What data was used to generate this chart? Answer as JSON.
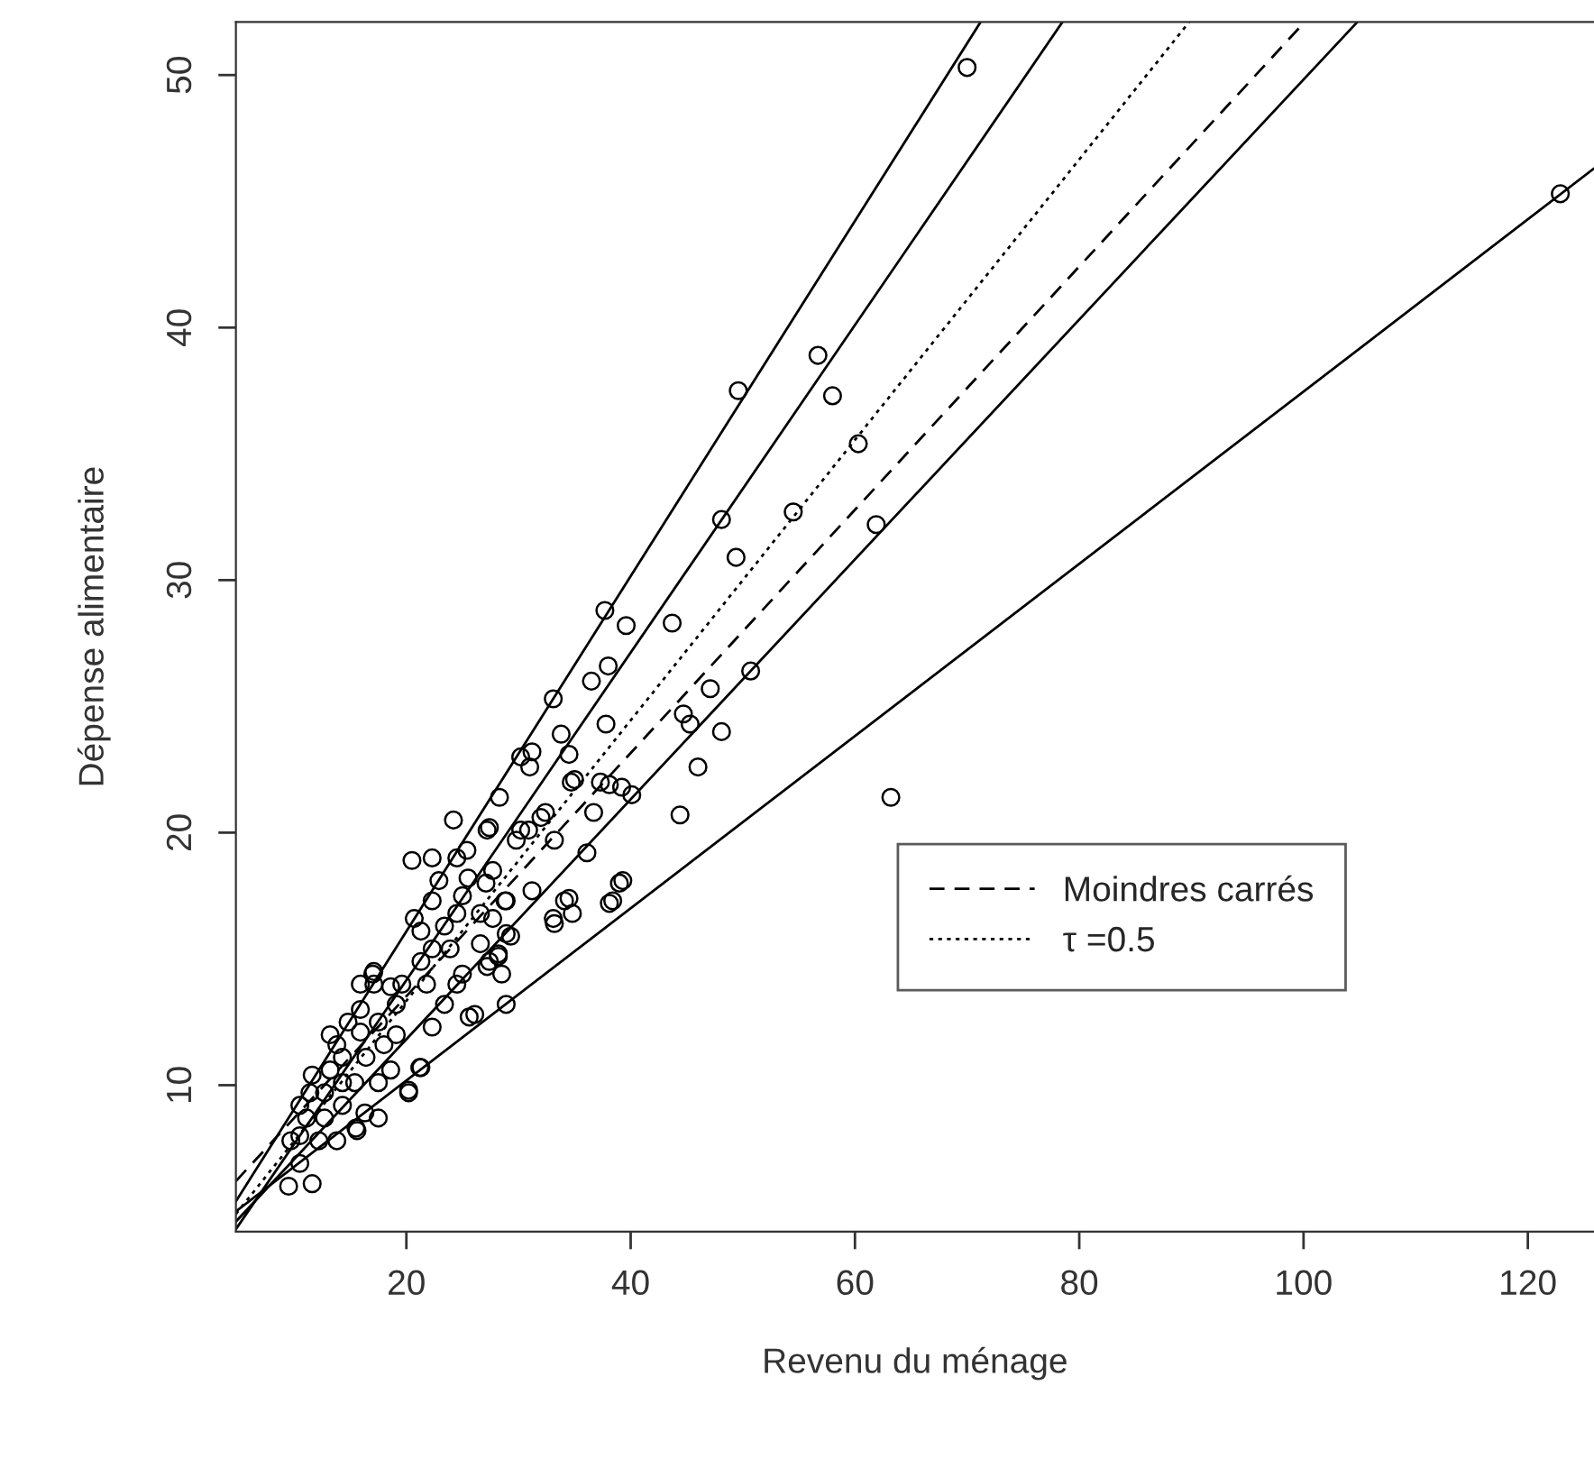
{
  "chart_data": {
    "type": "scatter",
    "xlabel": "Revenu du ménage",
    "ylabel": "Dépense alimentaire",
    "xlim": [
      4.8,
      125.9
    ],
    "ylim": [
      4.2,
      52.1
    ],
    "xticks": [
      20,
      40,
      60,
      80,
      100,
      120
    ],
    "yticks": [
      10,
      20,
      30,
      40,
      50
    ],
    "grid": false,
    "legend": "right",
    "series": [
      {
        "marker": "circle",
        "color": "#000000",
        "x": [
          70.0,
          122.9,
          56.7,
          49.6,
          58.0,
          60.3,
          54.5,
          48.1,
          61.9,
          49.4,
          37.7,
          39.6,
          43.7,
          33.1,
          38.0,
          36.5,
          47.1,
          50.7,
          44.7,
          45.3,
          37.8,
          33.8,
          34.5,
          30.2,
          31.2,
          48.1,
          46.0,
          35.0,
          38.1,
          39.2,
          40.1,
          36.7,
          44.4,
          63.2,
          31.0,
          28.3,
          32.4,
          24.2,
          20.5,
          36.1,
          33.2,
          30.2,
          27.4,
          39.3,
          38.1,
          34.5,
          33.2,
          34.8,
          31.2,
          28.9,
          27.1,
          25.4,
          22.9,
          28.9,
          28.2,
          28.5,
          27.4,
          28.9,
          25.6,
          21.3,
          20.2,
          17.1,
          17.1,
          15.5,
          16.3,
          9.5,
          11.6,
          10.5,
          9.7,
          11.1,
          12.7,
          11.4,
          13.8,
          15.9,
          13.2,
          15.4,
          17.5,
          15.6,
          17.5,
          20.2,
          21.2,
          17.0,
          15.9,
          22.3,
          25.0,
          26.6,
          28.8,
          27.7,
          29.3,
          28.2,
          27.2,
          26.1,
          23.4,
          22.3,
          19.1,
          19.1,
          18.6,
          21.3,
          23.9,
          25.0,
          23.4,
          21.3,
          25.5,
          27.7,
          29.8,
          30.9,
          14.3,
          12.2,
          10.5,
          12.7,
          14.3,
          13.8,
          13.2,
          14.8,
          15.9,
          17.5,
          18.0,
          16.4,
          18.6,
          14.3,
          11.6,
          10.5,
          33.1,
          34.1,
          38.4,
          39.0,
          32.0,
          34.7,
          37.3,
          19.6,
          20.7,
          21.8,
          24.5,
          22.3,
          24.5,
          26.6,
          22.3,
          24.5,
          27.2
        ],
        "values": [
          50.3,
          45.3,
          38.9,
          37.5,
          37.3,
          35.4,
          32.7,
          32.4,
          32.2,
          30.9,
          28.8,
          28.2,
          28.3,
          25.3,
          26.6,
          26.0,
          25.7,
          26.4,
          24.7,
          24.3,
          24.3,
          23.9,
          23.1,
          23.0,
          23.2,
          24.0,
          22.6,
          22.1,
          21.9,
          21.8,
          21.5,
          20.8,
          20.7,
          21.4,
          22.6,
          21.4,
          20.8,
          20.5,
          18.9,
          19.2,
          19.7,
          20.1,
          20.2,
          18.1,
          17.2,
          17.4,
          16.4,
          16.8,
          17.7,
          17.3,
          18.0,
          19.3,
          18.1,
          16.0,
          15.2,
          14.4,
          14.9,
          13.2,
          12.7,
          10.7,
          9.8,
          14.0,
          14.5,
          8.3,
          8.9,
          6.0,
          6.1,
          6.9,
          7.8,
          8.7,
          9.7,
          9.7,
          11.6,
          12.1,
          10.6,
          10.1,
          10.1,
          8.2,
          8.7,
          9.7,
          10.7,
          14.4,
          14.0,
          17.3,
          17.5,
          16.8,
          17.3,
          16.6,
          15.9,
          15.1,
          14.7,
          12.8,
          13.2,
          12.3,
          13.2,
          12.0,
          13.9,
          14.9,
          15.4,
          14.4,
          16.3,
          16.1,
          18.2,
          18.5,
          19.7,
          20.1,
          10.1,
          7.8,
          8.0,
          8.7,
          9.2,
          7.8,
          12.0,
          12.5,
          13.0,
          12.5,
          11.6,
          11.1,
          10.6,
          11.1,
          10.4,
          9.2,
          16.6,
          17.3,
          17.3,
          18.0,
          20.6,
          22.0,
          22.0,
          14.0,
          16.6,
          14.0,
          14.0,
          15.4,
          16.8,
          15.6,
          19.0,
          19.0,
          20.1
        ]
      },
      {
        "type": "line",
        "line_style": "solid",
        "color": "#000000",
        "x": [
          4.8,
          71.2
        ],
        "values": [
          5.4,
          52.1
        ]
      },
      {
        "type": "line",
        "line_style": "solid",
        "color": "#000000",
        "x": [
          4.8,
          78.5
        ],
        "values": [
          4.3,
          52.1
        ]
      },
      {
        "type": "line",
        "line_style": "dotted",
        "color": "#000000",
        "name": "τ =0.5",
        "x": [
          4.8,
          89.8
        ],
        "values": [
          4.9,
          52.1
        ]
      },
      {
        "type": "line",
        "line_style": "dashed",
        "color": "#000000",
        "name": "Moindres carrés",
        "x": [
          4.8,
          100.1
        ],
        "values": [
          6.2,
          52.1
        ]
      },
      {
        "type": "line",
        "line_style": "solid",
        "color": "#000000",
        "x": [
          4.8,
          104.8
        ],
        "values": [
          4.6,
          52.1
        ]
      },
      {
        "type": "line",
        "line_style": "solid",
        "color": "#000000",
        "x": [
          4.8,
          125.9
        ],
        "values": [
          5.0,
          46.3
        ]
      }
    ]
  }
}
